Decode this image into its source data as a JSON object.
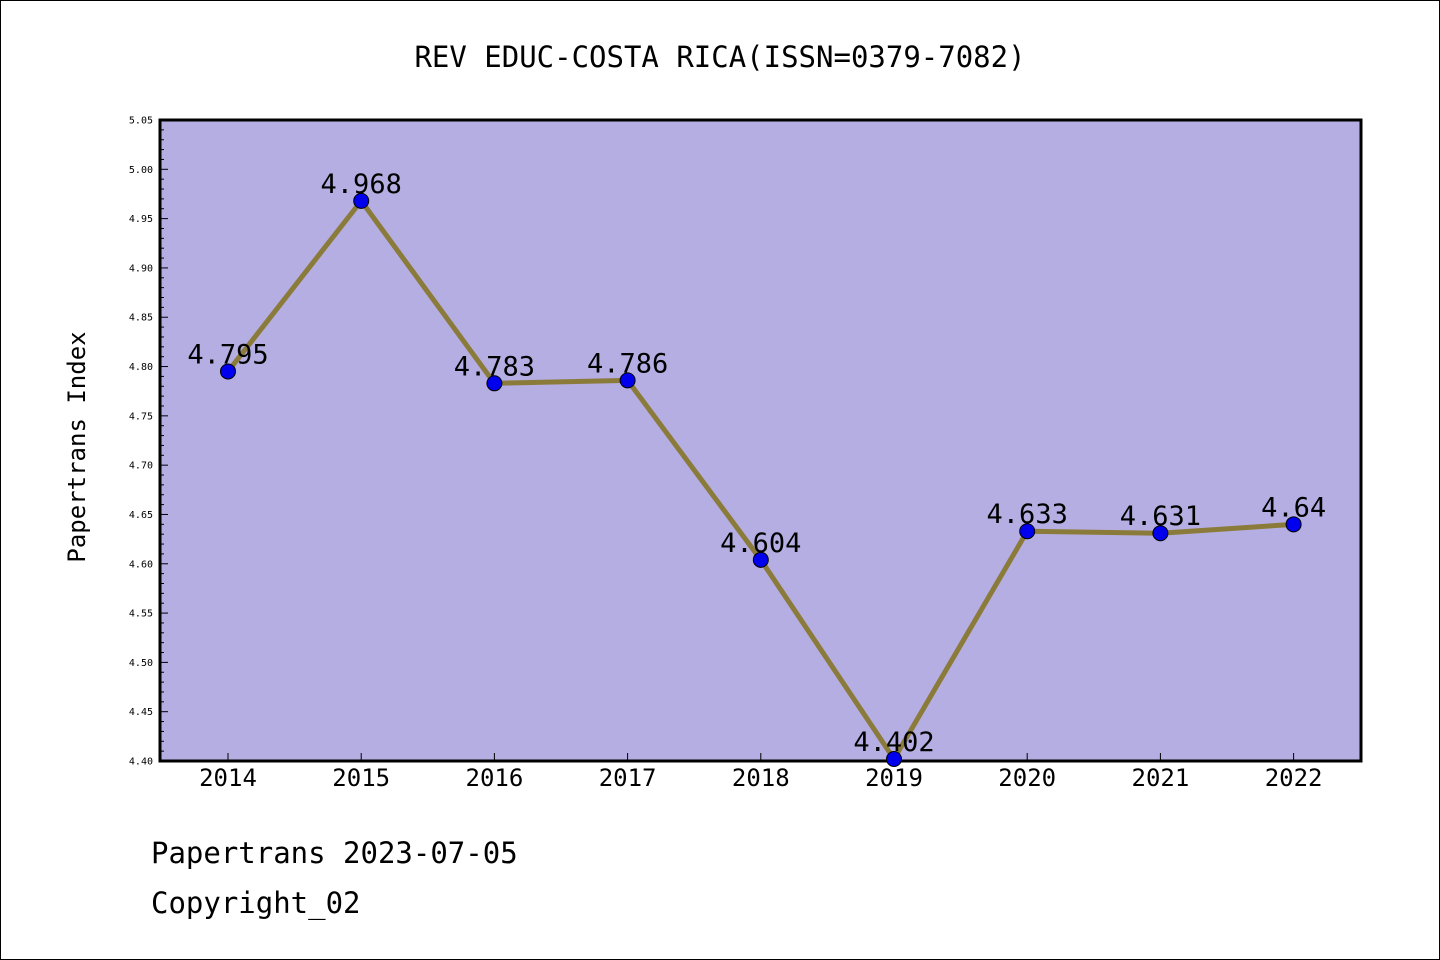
{
  "chart_data": {
    "type": "line",
    "title": "REV EDUC-COSTA RICA(ISSN=0379-7082)",
    "xlabel": "",
    "ylabel": "Papertrans Index",
    "categories": [
      "2014",
      "2015",
      "2016",
      "2017",
      "2018",
      "2019",
      "2020",
      "2021",
      "2022"
    ],
    "values": [
      4.795,
      4.968,
      4.783,
      4.786,
      4.604,
      4.402,
      4.633,
      4.631,
      4.64
    ],
    "data_labels": [
      "4.795",
      "4.968",
      "4.783",
      "4.786",
      "4.604",
      "4.402",
      "4.633",
      "4.631",
      "4.64"
    ],
    "ylim": [
      4.4,
      5.05
    ],
    "yticks": [
      "4.40",
      "4.45",
      "4.50",
      "4.55",
      "4.60",
      "4.65",
      "4.70",
      "4.75",
      "4.80",
      "4.85",
      "4.90",
      "4.95",
      "5.00",
      "5.05"
    ],
    "grid": false,
    "colors": {
      "plot_background": "#b5aee2",
      "line": "#8b7b3a",
      "marker": "#0000ee"
    }
  },
  "footer": {
    "source": "Papertrans 2023-07-05",
    "copyright": "Copyright_02"
  }
}
